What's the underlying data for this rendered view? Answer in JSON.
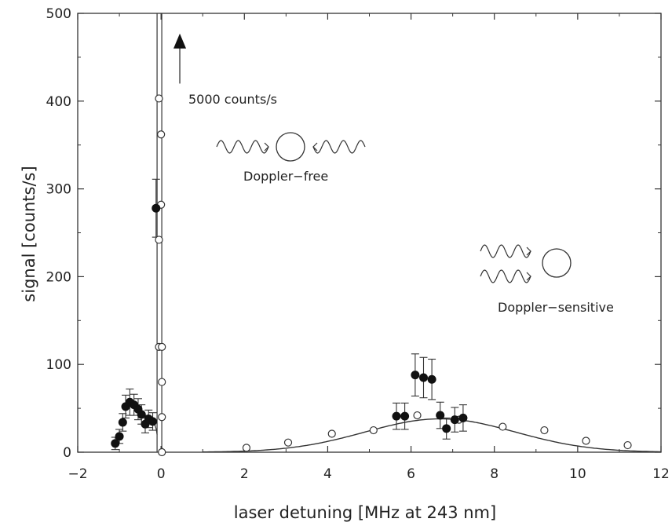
{
  "chart_data": {
    "type": "scatter",
    "xlabel": "laser detuning [MHz at 243 nm]",
    "ylabel": "signal [counts/s]",
    "xlim": [
      -2,
      12
    ],
    "ylim": [
      0,
      500
    ],
    "xticks": [
      -2,
      0,
      2,
      4,
      6,
      8,
      10,
      12
    ],
    "yticks": [
      0,
      100,
      200,
      300,
      400,
      500
    ],
    "grid": false,
    "annotations": {
      "arrow_label": "5000 counts/s",
      "doppler_free": "Doppler−free",
      "doppler_sensitive": "Doppler−sensitive"
    },
    "open_points": [
      {
        "x": -0.05,
        "y": 403
      },
      {
        "x": 0.0,
        "y": 362
      },
      {
        "x": 0.0,
        "y": 282
      },
      {
        "x": -0.05,
        "y": 242
      },
      {
        "x": -0.05,
        "y": 120
      },
      {
        "x": 0.02,
        "y": 120
      },
      {
        "x": 0.02,
        "y": 80
      },
      {
        "x": 0.02,
        "y": 40
      },
      {
        "x": 0.02,
        "y": 0
      },
      {
        "x": 2.05,
        "y": 5
      },
      {
        "x": 3.05,
        "y": 11
      },
      {
        "x": 4.1,
        "y": 21
      },
      {
        "x": 5.1,
        "y": 25
      },
      {
        "x": 6.15,
        "y": 42
      },
      {
        "x": 7.15,
        "y": 37
      },
      {
        "x": 8.2,
        "y": 29
      },
      {
        "x": 9.2,
        "y": 25
      },
      {
        "x": 10.2,
        "y": 13
      },
      {
        "x": 11.2,
        "y": 8
      }
    ],
    "filled_points": [
      {
        "x": -1.1,
        "y": 10,
        "err": 7
      },
      {
        "x": -1.0,
        "y": 18,
        "err": 8
      },
      {
        "x": -0.92,
        "y": 34,
        "err": 10
      },
      {
        "x": -0.85,
        "y": 52,
        "err": 13
      },
      {
        "x": -0.75,
        "y": 57,
        "err": 15
      },
      {
        "x": -0.65,
        "y": 54,
        "err": 12
      },
      {
        "x": -0.55,
        "y": 49,
        "err": 12
      },
      {
        "x": -0.47,
        "y": 43,
        "err": 11
      },
      {
        "x": -0.38,
        "y": 32,
        "err": 10
      },
      {
        "x": -0.3,
        "y": 38,
        "err": 10
      },
      {
        "x": -0.2,
        "y": 35,
        "err": 10
      },
      {
        "x": -0.12,
        "y": 278,
        "err": 33
      },
      {
        "x": 5.65,
        "y": 41,
        "err": 15
      },
      {
        "x": 5.85,
        "y": 41,
        "err": 15
      },
      {
        "x": 6.1,
        "y": 88,
        "err": 24
      },
      {
        "x": 6.3,
        "y": 85,
        "err": 23
      },
      {
        "x": 6.5,
        "y": 83,
        "err": 23
      },
      {
        "x": 6.7,
        "y": 42,
        "err": 15
      },
      {
        "x": 6.85,
        "y": 27,
        "err": 12
      },
      {
        "x": 7.05,
        "y": 37,
        "err": 14
      },
      {
        "x": 7.25,
        "y": 39,
        "err": 15
      }
    ],
    "gaussian_fit": {
      "amplitude": 38,
      "center": 6.7,
      "sigma": 1.8,
      "x_range": [
        1.0,
        12.0
      ]
    },
    "narrow_peak": {
      "center": -0.02,
      "height": 5000
    }
  }
}
